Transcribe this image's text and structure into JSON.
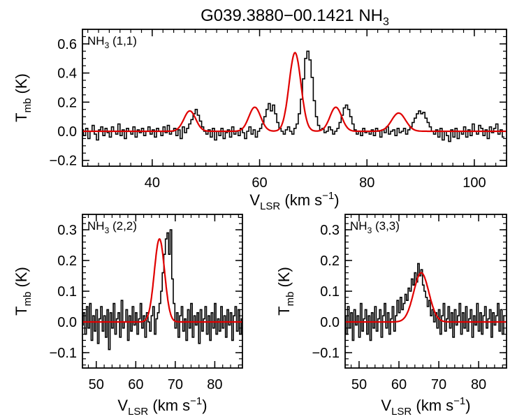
{
  "title_main": "G039.3880−00.1421 NH",
  "title_sub": "3",
  "colors": {
    "data": "#000000",
    "fit": "#e00000",
    "axis": "#000000"
  },
  "chart_data": [
    {
      "type": "line",
      "id": "top",
      "label_main": "NH",
      "label_sub": "3",
      "label_rest": " (1,1)",
      "xlabel_main": "V",
      "xlabel_sub": "LSR",
      "xlabel_rest": " (km s",
      "xlabel_sup": "−1",
      "xlabel_end": ")",
      "ylabel_main": "T",
      "ylabel_sub": "mb",
      "ylabel_rest": " (K)",
      "xlim": [
        27,
        106
      ],
      "ylim": [
        -0.24,
        0.7
      ],
      "xticks": [
        40,
        60,
        80,
        100
      ],
      "xtick_labels": [
        "40",
        "60",
        "80",
        "100"
      ],
      "yticks": [
        -0.2,
        0.0,
        0.2,
        0.4,
        0.6
      ],
      "ytick_labels": [
        "−0.2",
        "0.0",
        "0.2",
        "0.4",
        "0.6"
      ],
      "x_minor": 2,
      "y_minor": 0.05,
      "gaussians": [
        {
          "amp": 0.14,
          "center": 47.0,
          "sigma": 1.1
        },
        {
          "amp": 0.165,
          "center": 59.1,
          "sigma": 1.1
        },
        {
          "amp": 0.54,
          "center": 66.6,
          "sigma": 1.1
        },
        {
          "amp": 0.165,
          "center": 74.2,
          "sigma": 1.1
        },
        {
          "amp": 0.125,
          "center": 85.9,
          "sigma": 1.3
        }
      ],
      "x_start": 27.0,
      "x_step": 0.4,
      "values": [
        0.01,
        -0.03,
        0.02,
        -0.05,
        0.0,
        0.04,
        -0.02,
        -0.06,
        0.01,
        0.03,
        -0.03,
        0.02,
        -0.01,
        -0.04,
        0.03,
        0.0,
        -0.02,
        0.05,
        -0.03,
        0.01,
        -0.05,
        0.02,
        0.0,
        -0.02,
        0.03,
        -0.04,
        0.01,
        -0.01,
        0.02,
        -0.03,
        0.0,
        0.03,
        -0.02,
        0.01,
        -0.04,
        0.02,
        0.0,
        -0.03,
        0.03,
        -0.01,
        0.04,
        -0.02,
        0.0,
        0.02,
        -0.03,
        0.01,
        -0.05,
        0.03,
        -0.01,
        0.02,
        0.05,
        0.08,
        0.12,
        0.15,
        0.11,
        0.07,
        0.03,
        0.0,
        -0.02,
        0.01,
        -0.04,
        0.02,
        -0.06,
        0.0,
        -0.03,
        0.02,
        -0.05,
        -0.01,
        0.01,
        -0.04,
        0.03,
        -0.02,
        0.0,
        -0.03,
        0.02,
        -0.01,
        -0.05,
        0.0,
        0.03,
        -0.02,
        0.01,
        -0.04,
        0.0,
        0.02,
        0.05,
        0.1,
        0.15,
        0.19,
        0.14,
        0.18,
        0.12,
        0.06,
        0.02,
        0.0,
        -0.02,
        0.01,
        0.03,
        0.0,
        -0.02,
        0.02,
        0.05,
        0.12,
        0.22,
        0.36,
        0.5,
        0.55,
        0.49,
        0.37,
        0.21,
        0.1,
        0.04,
        0.01,
        0.02,
        -0.01,
        0.0,
        0.03,
        0.01,
        -0.02,
        0.0,
        0.02,
        0.06,
        0.11,
        0.16,
        0.18,
        0.15,
        0.1,
        0.05,
        0.01,
        -0.02,
        0.0,
        -0.03,
        0.02,
        -0.01,
        0.0,
        -0.02,
        0.01,
        -0.03,
        0.02,
        0.0,
        -0.04,
        0.01,
        -0.01,
        0.03,
        -0.02,
        0.0,
        0.01,
        -0.03,
        0.02,
        -0.01,
        0.0,
        0.02,
        -0.02,
        0.01,
        0.03,
        0.06,
        0.09,
        0.12,
        0.14,
        0.12,
        0.13,
        0.09,
        0.06,
        0.03,
        0.0,
        -0.02,
        0.01,
        -0.04,
        0.02,
        -0.06,
        0.0,
        -0.03,
        -0.07,
        0.01,
        -0.04,
        0.02,
        -0.05,
        0.0,
        -0.02,
        0.03,
        -0.04,
        0.01,
        -0.03,
        0.05,
        0.0,
        -0.02,
        0.04,
        0.02,
        -0.03,
        0.01,
        -0.05,
        0.03,
        -0.01,
        0.02,
        0.05,
        -0.02,
        0.01,
        -0.04
      ]
    },
    {
      "type": "line",
      "id": "bl",
      "label_main": "NH",
      "label_sub": "3",
      "label_rest": " (2,2)",
      "xlabel_main": "V",
      "xlabel_sub": "LSR",
      "xlabel_rest": " (km s",
      "xlabel_sup": "−1",
      "xlabel_end": ")",
      "ylabel_main": "T",
      "ylabel_sub": "mb",
      "ylabel_rest": " (K)",
      "xlim": [
        46.5,
        87
      ],
      "ylim": [
        -0.15,
        0.35
      ],
      "xticks": [
        50,
        60,
        70,
        80
      ],
      "xtick_labels": [
        "50",
        "60",
        "70",
        "80"
      ],
      "yticks": [
        -0.1,
        0.0,
        0.1,
        0.2,
        0.3
      ],
      "ytick_labels": [
        "−0.1",
        "0.0",
        "0.1",
        "0.2",
        "0.3"
      ],
      "x_minor": 2,
      "y_minor": 0.02,
      "gaussians": [
        {
          "amp": 0.27,
          "center": 66.0,
          "sigma": 1.3
        }
      ],
      "x_start": 46.5,
      "x_step": 0.4,
      "values": [
        -0.01,
        0.03,
        -0.04,
        0.05,
        -0.02,
        0.06,
        -0.06,
        0.02,
        -0.03,
        0.04,
        -0.07,
        0.01,
        0.05,
        -0.03,
        0.02,
        -0.05,
        0.04,
        -0.09,
        0.03,
        -0.02,
        0.06,
        -0.04,
        0.01,
        0.03,
        -0.05,
        0.07,
        -0.02,
        0.0,
        0.04,
        -0.06,
        0.02,
        -0.03,
        0.05,
        -0.01,
        0.03,
        -0.04,
        0.01,
        0.06,
        -0.02,
        0.02,
        -0.05,
        0.03,
        0.0,
        -0.03,
        0.02,
        0.05,
        -0.04,
        0.01,
        0.03,
        0.06,
        0.1,
        0.16,
        0.22,
        0.27,
        0.29,
        0.22,
        0.3,
        0.14,
        0.06,
        -0.02,
        0.03,
        -0.05,
        0.02,
        0.05,
        -0.03,
        0.01,
        -0.06,
        0.04,
        -0.02,
        0.06,
        -0.05,
        0.02,
        -0.01,
        0.03,
        -0.07,
        0.04,
        -0.03,
        0.01,
        0.05,
        -0.04,
        0.02,
        -0.06,
        0.03,
        -0.02,
        0.06,
        -0.04,
        0.01,
        -0.03,
        0.05,
        -0.02,
        0.02,
        -0.05,
        0.04,
        -0.01,
        0.03,
        -0.06,
        0.02,
        0.05,
        -0.03,
        0.04,
        -0.04,
        0.01
      ]
    },
    {
      "type": "line",
      "id": "br",
      "label_main": "NH",
      "label_sub": "3",
      "label_rest": " (3,3)",
      "xlabel_main": "V",
      "xlabel_sub": "LSR",
      "xlabel_rest": " (km s",
      "xlabel_sup": "−1",
      "xlabel_end": ")",
      "ylabel_main": "T",
      "ylabel_sub": "mb",
      "ylabel_rest": " (K)",
      "xlim": [
        46.5,
        87
      ],
      "ylim": [
        -0.15,
        0.35
      ],
      "xticks": [
        50,
        60,
        70,
        80
      ],
      "xtick_labels": [
        "50",
        "60",
        "70",
        "80"
      ],
      "yticks": [
        -0.1,
        0.0,
        0.1,
        0.2,
        0.3
      ],
      "ytick_labels": [
        "−0.1",
        "0.0",
        "0.1",
        "0.2",
        "0.3"
      ],
      "x_minor": 2,
      "y_minor": 0.02,
      "gaussians": [
        {
          "amp": 0.16,
          "center": 65.6,
          "sigma": 1.9
        }
      ],
      "x_start": 46.5,
      "x_step": 0.4,
      "values": [
        0.02,
        -0.04,
        0.05,
        -0.02,
        0.03,
        -0.06,
        0.04,
        -0.01,
        0.02,
        -0.05,
        0.06,
        -0.03,
        0.01,
        0.04,
        -0.04,
        0.02,
        -0.06,
        0.03,
        -0.02,
        0.05,
        -0.03,
        0.01,
        0.04,
        -0.05,
        0.02,
        0.06,
        -0.02,
        0.03,
        -0.04,
        0.01,
        0.05,
        -0.03,
        0.02,
        0.07,
        0.03,
        0.08,
        0.04,
        0.06,
        0.09,
        0.07,
        0.11,
        0.1,
        0.14,
        0.12,
        0.16,
        0.13,
        0.19,
        0.15,
        0.17,
        0.12,
        0.1,
        0.08,
        0.05,
        0.07,
        0.02,
        0.04,
        0.0,
        0.03,
        -0.02,
        0.04,
        -0.04,
        0.02,
        0.06,
        -0.03,
        0.01,
        0.05,
        -0.02,
        0.03,
        -0.05,
        0.04,
        -0.01,
        0.02,
        0.06,
        -0.04,
        0.03,
        -0.02,
        0.05,
        -0.03,
        0.01,
        0.04,
        -0.05,
        0.02,
        -0.01,
        0.06,
        -0.03,
        0.03,
        -0.04,
        0.02,
        0.05,
        -0.02,
        0.01,
        0.04,
        -0.05,
        0.03,
        -0.01,
        0.02,
        0.06,
        -0.03,
        0.04,
        -0.04,
        0.02
      ]
    }
  ]
}
